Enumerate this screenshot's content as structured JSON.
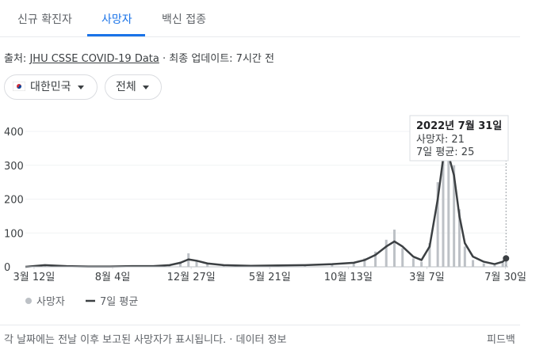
{
  "tabs": [
    "신규 확진자",
    "사망자",
    "백신 접종"
  ],
  "source": {
    "prefix": "출처:",
    "link": "JHU CSSE COVID-19 Data",
    "updated": "· 최종 업데이트: 7시간 전"
  },
  "filters": [
    "대한민국",
    "전체"
  ],
  "chart_data": {
    "type": "bar",
    "x": [
      -16,
      20,
      60,
      100,
      140,
      180,
      220,
      250,
      270,
      285,
      300,
      320,
      350,
      400,
      450,
      500,
      550,
      590,
      610,
      630,
      650,
      665,
      680,
      700,
      715,
      730,
      745,
      755,
      765,
      775,
      785,
      795,
      810,
      830,
      850,
      865,
      871
    ],
    "series": [
      {
        "name": "사망자",
        "color": "#bdc1c6",
        "values": [
          0,
          6,
          2,
          1,
          1,
          3,
          2,
          6,
          15,
          40,
          20,
          9,
          4,
          3,
          5,
          4,
          9,
          14,
          25,
          45,
          80,
          110,
          55,
          25,
          15,
          70,
          250,
          370,
          390,
          300,
          170,
          60,
          20,
          10,
          5,
          12,
          21
        ]
      },
      {
        "name": "7일 평균",
        "color": "#3c4043",
        "values": [
          0,
          5,
          2,
          1,
          1,
          2,
          2,
          5,
          12,
          22,
          18,
          10,
          5,
          3,
          4,
          5,
          8,
          12,
          20,
          35,
          60,
          75,
          60,
          30,
          20,
          60,
          200,
          320,
          330,
          270,
          150,
          70,
          30,
          15,
          8,
          15,
          25
        ]
      }
    ],
    "xlim": [
      -16,
      875
    ],
    "xticks": [
      {
        "value": 0,
        "label": "3월 12일"
      },
      {
        "value": 145,
        "label": "8월 4일"
      },
      {
        "value": 290,
        "label": "12월 27일"
      },
      {
        "value": 435,
        "label": "5월 21일"
      },
      {
        "value": 580,
        "label": "10월 13일"
      },
      {
        "value": 725,
        "label": "3월 7일"
      },
      {
        "value": 870,
        "label": "7월 30일"
      }
    ],
    "ylim": [
      0,
      400
    ],
    "yticks": [
      0,
      100,
      200,
      300,
      400
    ],
    "tooltip": {
      "date": "2022년 7월 31일",
      "lines": [
        "사망자: 21",
        "7일 평균: 25"
      ]
    }
  },
  "footer": {
    "note": "각 날짜에는 전날 이후 보고된 사망자가 표시됩니다.",
    "link": "데이터 정보",
    "feedback": "피드백"
  }
}
